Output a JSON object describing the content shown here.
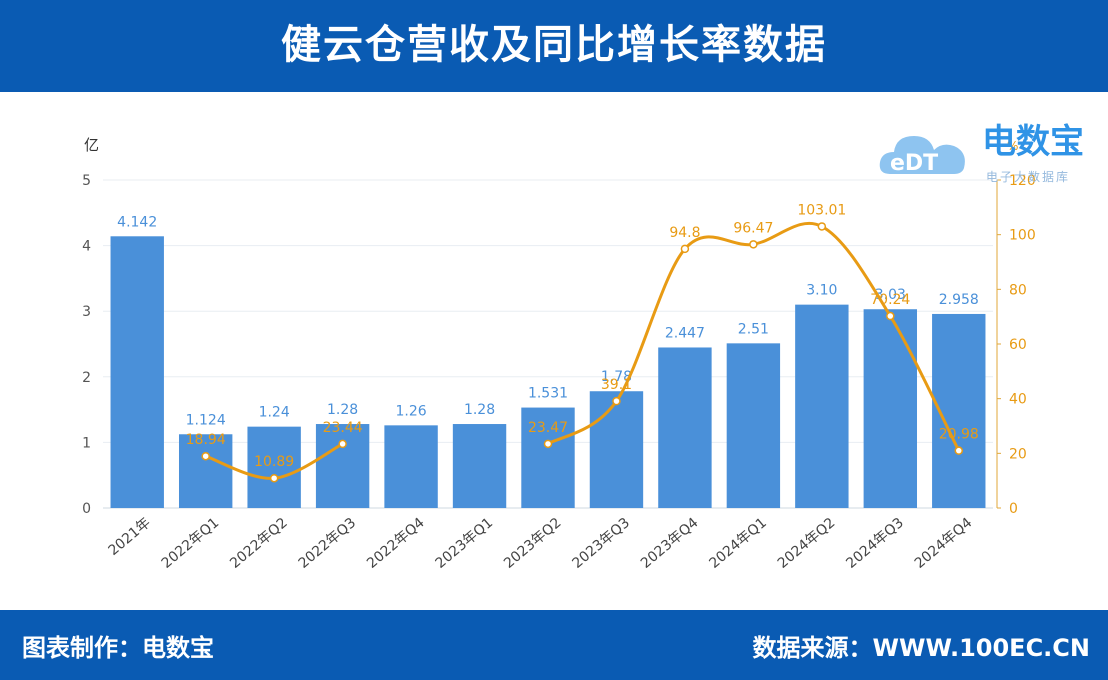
{
  "header": {
    "title": "健云仓营收及同比增长率数据"
  },
  "logo": {
    "badge_text": "eDT",
    "name": "电数宝",
    "tagline": "电子大数据库"
  },
  "footer": {
    "left_text": "图表制作：电数宝",
    "right_text": "数据来源：WWW.100EC.CN"
  },
  "colors": {
    "header_bg": "#0a5bb3",
    "bar": "#4a90d9",
    "line": "#e89b14",
    "bar_label": "#4a90d9",
    "line_label": "#e89b14"
  },
  "chart_data": {
    "type": "bar",
    "categories": [
      "2021年",
      "2022年Q1",
      "2022年Q2",
      "2022年Q3",
      "2022年Q4",
      "2023年Q1",
      "2023年Q2",
      "2023年Q3",
      "2023年Q4",
      "2024年Q1",
      "2024年Q2",
      "2024年Q3",
      "2024年Q4"
    ],
    "series": [
      {
        "values": [
          4.142,
          1.124,
          1.24,
          1.28,
          1.26,
          1.28,
          1.531,
          1.78,
          2.447,
          2.51,
          3.1,
          3.03,
          2.958
        ],
        "value_labels": [
          "4.142",
          "1.124",
          "1.24",
          "1.28",
          "1.26",
          "1.28",
          "1.531",
          "1.78",
          "2.447",
          "2.51",
          "3.10",
          "3.03",
          "2.958"
        ]
      },
      {
        "values": [
          null,
          18.94,
          10.89,
          23.44,
          null,
          null,
          23.47,
          39.1,
          94.8,
          96.47,
          103.01,
          70.24,
          20.98
        ],
        "value_labels": [
          "",
          "18.94",
          "10.89",
          "23.44",
          "",
          "",
          "23.47",
          "39.1",
          "94.8",
          "96.47",
          "103.01",
          "70.24",
          "20.98"
        ]
      }
    ],
    "y_left": {
      "unit": "亿",
      "range": [
        0,
        5
      ],
      "ticks": [
        "0",
        "1",
        "2",
        "3",
        "4",
        "5"
      ]
    },
    "y_right": {
      "unit": "%",
      "range": [
        0,
        120
      ],
      "ticks": [
        "0",
        "20",
        "40",
        "60",
        "80",
        "100",
        "120"
      ]
    },
    "grid": true
  }
}
